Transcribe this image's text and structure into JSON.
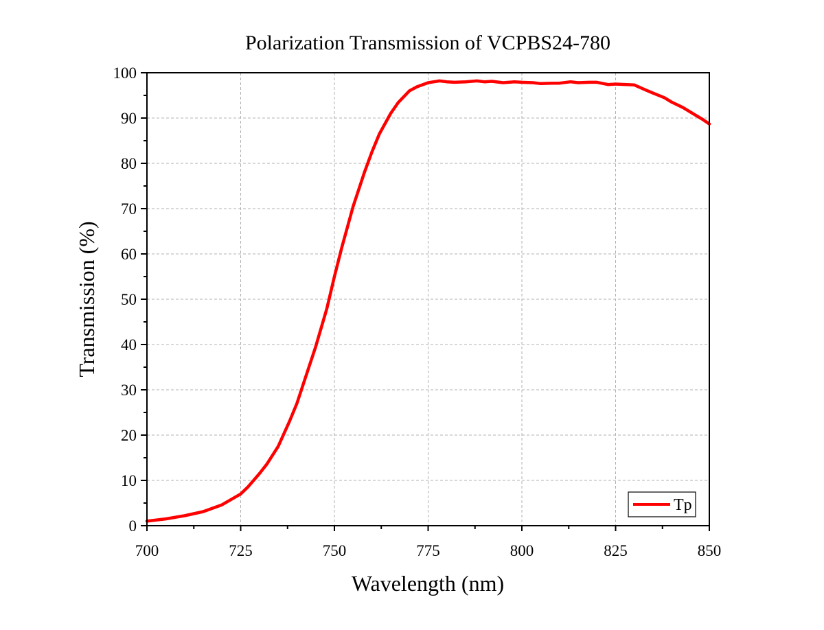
{
  "chart_data": {
    "type": "line",
    "title": "Polarization Transmission of VCPBS24-780",
    "xlabel": "Wavelength (nm)",
    "ylabel": "Transmission (%)",
    "xlim": [
      700,
      850
    ],
    "ylim": [
      0,
      100
    ],
    "x_ticks": [
      700,
      725,
      750,
      775,
      800,
      825,
      850
    ],
    "y_ticks": [
      0,
      10,
      20,
      30,
      40,
      50,
      60,
      70,
      80,
      90,
      100
    ],
    "grid": true,
    "legend_position": "bottom-right",
    "series": [
      {
        "name": "Tp",
        "color": "#ff0000",
        "points": [
          [
            700,
            1.0
          ],
          [
            705,
            1.5
          ],
          [
            710,
            2.2
          ],
          [
            715,
            3.1
          ],
          [
            720,
            4.6
          ],
          [
            725,
            7.0
          ],
          [
            727,
            8.6
          ],
          [
            730,
            11.5
          ],
          [
            732,
            13.6
          ],
          [
            735,
            17.5
          ],
          [
            738,
            23.0
          ],
          [
            740,
            27.0
          ],
          [
            742,
            32.0
          ],
          [
            745,
            39.5
          ],
          [
            748,
            48.0
          ],
          [
            750,
            55.0
          ],
          [
            752,
            61.5
          ],
          [
            755,
            70.5
          ],
          [
            758,
            78.0
          ],
          [
            760,
            82.5
          ],
          [
            762,
            86.5
          ],
          [
            765,
            91.0
          ],
          [
            767,
            93.4
          ],
          [
            770,
            96.0
          ],
          [
            772,
            96.9
          ],
          [
            775,
            97.8
          ],
          [
            778,
            98.2
          ],
          [
            780,
            98.0
          ],
          [
            782,
            97.9
          ],
          [
            785,
            98.0
          ],
          [
            788,
            98.2
          ],
          [
            790,
            98.0
          ],
          [
            792,
            98.1
          ],
          [
            795,
            97.8
          ],
          [
            798,
            98.0
          ],
          [
            800,
            97.9
          ],
          [
            803,
            97.8
          ],
          [
            805,
            97.6
          ],
          [
            808,
            97.7
          ],
          [
            810,
            97.7
          ],
          [
            813,
            98.0
          ],
          [
            815,
            97.8
          ],
          [
            818,
            97.9
          ],
          [
            820,
            97.9
          ],
          [
            823,
            97.4
          ],
          [
            825,
            97.5
          ],
          [
            828,
            97.4
          ],
          [
            830,
            97.3
          ],
          [
            833,
            96.2
          ],
          [
            835,
            95.5
          ],
          [
            838,
            94.5
          ],
          [
            840,
            93.5
          ],
          [
            843,
            92.3
          ],
          [
            845,
            91.3
          ],
          [
            848,
            89.8
          ],
          [
            850,
            88.7
          ]
        ]
      }
    ]
  }
}
